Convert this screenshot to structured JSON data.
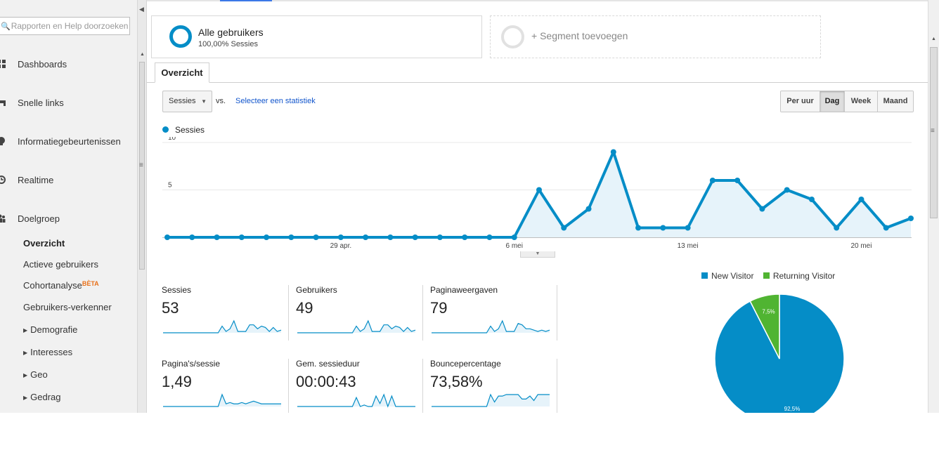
{
  "sidebar": {
    "search_placeholder": "Rapporten en Help doorzoeken",
    "search_icon": "search-icon",
    "main_items": [
      {
        "label": "Dashboards",
        "icon": "dashboard-icon"
      },
      {
        "label": "Snelle links",
        "icon": "shortcut-icon"
      },
      {
        "label": "Informatiegebeurtenissen",
        "icon": "lightbulb-icon"
      },
      {
        "label": "Realtime",
        "icon": "clock-icon"
      },
      {
        "label": "Doelgroep",
        "icon": "people-icon"
      }
    ],
    "sub_items": [
      {
        "label": "Overzicht",
        "active": true
      },
      {
        "label": "Actieve gebruikers"
      },
      {
        "label": "Cohortanalyse",
        "badge": "BÈTA"
      },
      {
        "label": "Gebruikers-verkenner"
      },
      {
        "label": "Demografie",
        "expandable": true
      },
      {
        "label": "Interesses",
        "expandable": true
      },
      {
        "label": "Geo",
        "expandable": true
      },
      {
        "label": "Gedrag",
        "expandable": true
      }
    ]
  },
  "segments": {
    "active": {
      "title": "Alle gebruikers",
      "subtitle": "100,00% Sessies"
    },
    "add": {
      "label": "+ Segment toevoegen"
    }
  },
  "tab": {
    "label": "Overzicht"
  },
  "controls": {
    "metric": "Sessies",
    "vs": "vs.",
    "select_metric": "Selecteer een statistiek",
    "periods": [
      "Per uur",
      "Dag",
      "Week",
      "Maand"
    ],
    "selected_period": "Dag"
  },
  "colors": {
    "series": "#058dc7",
    "area": "#e6f3fa",
    "new_visitor": "#058dc7",
    "returning_visitor": "#50b432"
  },
  "chart_data": [
    {
      "type": "line",
      "series": [
        {
          "name": "Sessies",
          "values": [
            0,
            0,
            0,
            0,
            0,
            0,
            0,
            0,
            0,
            0,
            0,
            0,
            0,
            0,
            0,
            5,
            1,
            3,
            9,
            1,
            1,
            1,
            6,
            6,
            3,
            5,
            4,
            1,
            4,
            1,
            2
          ]
        }
      ],
      "x": [
        "22 apr",
        "23 apr",
        "24 apr",
        "25 apr",
        "26 apr",
        "27 apr",
        "28 apr",
        "29 apr",
        "30 apr",
        "1 mei",
        "2 mei",
        "3 mei",
        "4 mei",
        "5 mei",
        "6 mei",
        "7 mei",
        "8 mei",
        "9 mei",
        "10 mei",
        "11 mei",
        "12 mei",
        "13 mei",
        "14 mei",
        "15 mei",
        "16 mei",
        "17 mei",
        "18 mei",
        "19 mei",
        "20 mei",
        "21 mei",
        "22 mei"
      ],
      "x_ticks": [
        "29 apr.",
        "6 mei",
        "13 mei",
        "20 mei"
      ],
      "y_ticks": [
        5,
        10
      ],
      "ylim": [
        0,
        10
      ],
      "grid": true
    },
    {
      "type": "pie",
      "labels": [
        "New Visitor",
        "Returning Visitor"
      ],
      "values": [
        92.5,
        7.5
      ],
      "slice_labels": [
        "92,5%",
        "7,5%"
      ],
      "legend": "top"
    }
  ],
  "scorecards": [
    {
      "label": "Sessies",
      "value": "53",
      "spark": [
        0,
        0,
        0,
        0,
        0,
        0,
        0,
        0,
        0,
        0,
        0,
        0,
        0,
        0,
        0,
        5,
        1,
        3,
        9,
        1,
        1,
        1,
        6,
        6,
        3,
        5,
        4,
        1,
        4,
        1,
        2
      ]
    },
    {
      "label": "Gebruikers",
      "value": "49",
      "spark": [
        0,
        0,
        0,
        0,
        0,
        0,
        0,
        0,
        0,
        0,
        0,
        0,
        0,
        0,
        0,
        5,
        1,
        3,
        9,
        1,
        1,
        1,
        6,
        6,
        3,
        5,
        4,
        1,
        4,
        1,
        2
      ]
    },
    {
      "label": "Paginaweergaven",
      "value": "79",
      "spark": [
        0,
        0,
        0,
        0,
        0,
        0,
        0,
        0,
        0,
        0,
        0,
        0,
        0,
        0,
        0,
        5,
        1,
        3,
        9,
        1,
        1,
        1,
        7,
        6,
        3,
        3,
        2,
        1,
        2,
        1,
        2
      ]
    },
    {
      "label": "Pagina's/sessie",
      "value": "1,49",
      "spark": [
        0,
        0,
        0,
        0,
        0,
        0,
        0,
        0,
        0,
        0,
        0,
        0,
        0,
        0,
        0,
        9,
        2,
        3,
        2,
        2,
        3,
        2,
        3,
        4,
        3,
        2,
        2,
        2,
        2,
        2,
        2
      ]
    },
    {
      "label": "Gem. sessieduur",
      "value": "00:00:43",
      "spark": [
        0,
        0,
        0,
        0,
        0,
        0,
        0,
        0,
        0,
        0,
        0,
        0,
        0,
        0,
        0,
        6,
        0,
        1,
        0,
        0,
        7,
        2,
        8,
        0,
        7,
        0,
        0,
        0,
        0,
        0,
        0
      ]
    },
    {
      "label": "Bouncepercentage",
      "value": "73,58%",
      "spark": [
        0,
        0,
        0,
        0,
        0,
        0,
        0,
        0,
        0,
        0,
        0,
        0,
        0,
        0,
        0,
        8,
        3,
        7,
        7,
        8,
        8,
        8,
        8,
        5,
        5,
        7,
        4,
        8,
        8,
        8,
        8
      ]
    }
  ]
}
